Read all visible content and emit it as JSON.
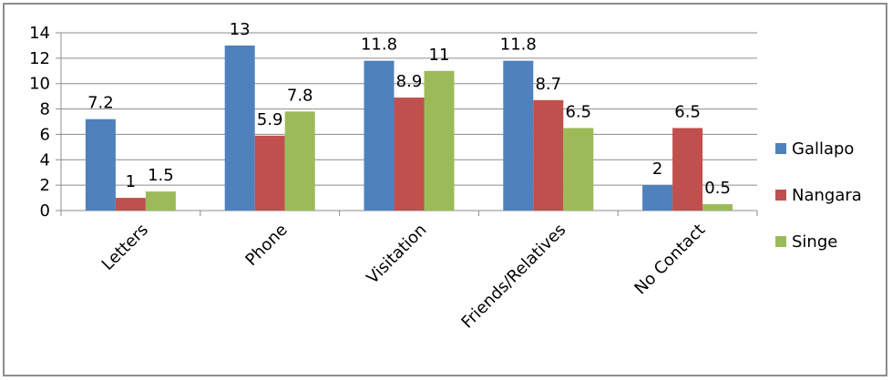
{
  "chart_data": {
    "type": "bar",
    "categories": [
      "Letters",
      "Phone",
      "Visitation",
      "Friends/Relatives",
      "No Contact"
    ],
    "series": [
      {
        "name": "Gallapo",
        "values": [
          7.2,
          13,
          11.8,
          11.8,
          2
        ],
        "color": "#4f81bd"
      },
      {
        "name": "Nangara",
        "values": [
          1,
          5.9,
          8.9,
          8.7,
          6.5
        ],
        "color": "#c0504d"
      },
      {
        "name": "Singe",
        "values": [
          1.5,
          7.8,
          11,
          6.5,
          0.5
        ],
        "color": "#9bbb59"
      }
    ],
    "y_ticks": [
      "0",
      "2",
      "4",
      "6",
      "8",
      "10",
      "12",
      "14"
    ],
    "ylim": [
      0,
      14
    ],
    "grid": true,
    "legend_position": "right",
    "title": "",
    "xlabel": "",
    "ylabel": ""
  }
}
